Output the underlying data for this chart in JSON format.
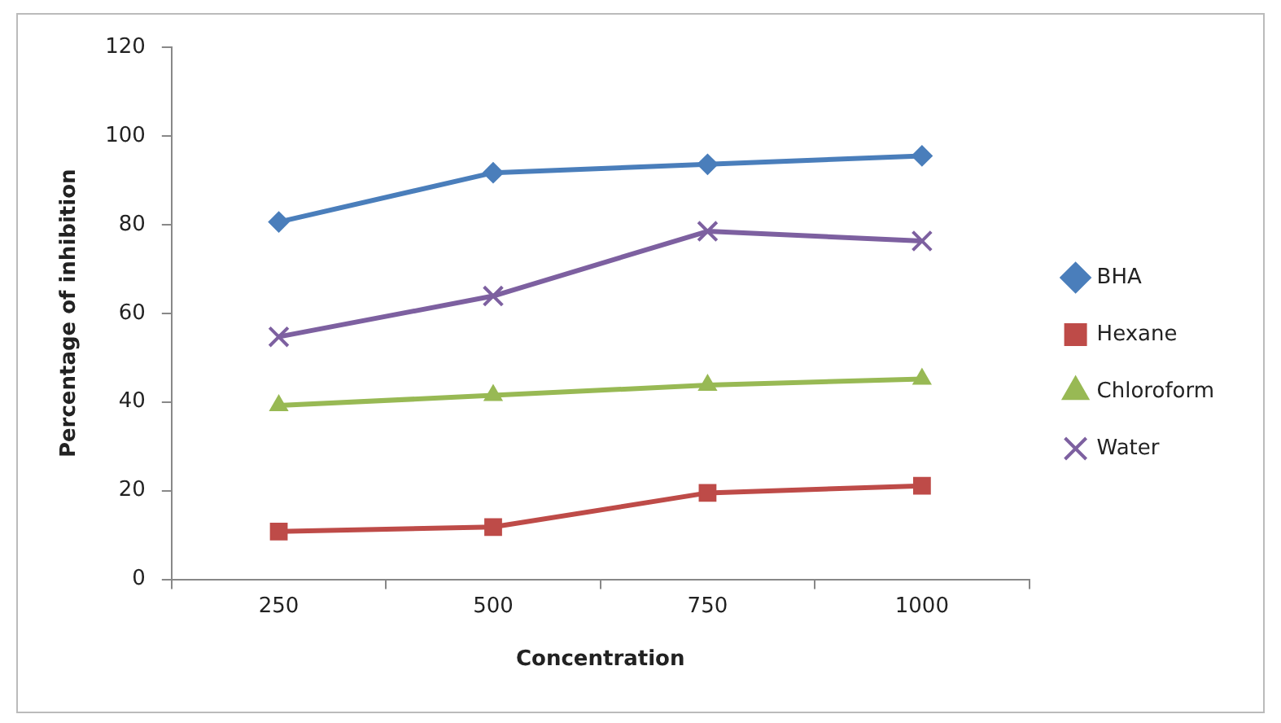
{
  "chart_data": {
    "type": "line",
    "xlabel": "Concentration",
    "ylabel": "Percentage of inhibition",
    "categories": [
      "250",
      "500",
      "750",
      "1000"
    ],
    "series": [
      {
        "name": "BHA",
        "color": "#4a7ebb",
        "marker": "diamond",
        "values": [
          80.6,
          91.7,
          93.6,
          95.5
        ]
      },
      {
        "name": "Hexane",
        "color": "#be4b48",
        "marker": "square",
        "values": [
          10.8,
          11.8,
          19.5,
          21.1
        ]
      },
      {
        "name": "Chloroform",
        "color": "#98b954",
        "marker": "triangle",
        "values": [
          39.2,
          41.5,
          43.8,
          45.2
        ]
      },
      {
        "name": "Water",
        "color": "#7d60a0",
        "marker": "cross",
        "values": [
          54.7,
          63.9,
          78.5,
          76.3
        ]
      }
    ],
    "ylim": [
      0,
      120
    ],
    "yticks": [
      0,
      20,
      40,
      60,
      80,
      100,
      120
    ],
    "grid": false,
    "legend": "right",
    "line_style": "solid"
  }
}
